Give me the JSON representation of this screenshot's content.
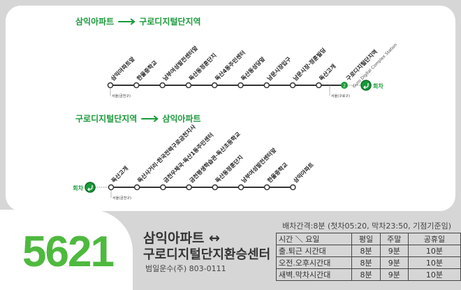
{
  "route_number": "5621",
  "colors": {
    "accent": "#1a9a3a",
    "number": "#4fb93f"
  },
  "outbound": {
    "from": "삼익아파트",
    "to": "구로디지털단지역",
    "stops": [
      "삼익아파트앞",
      "한울중학교",
      "남부여성발전센터앞",
      "독산동정훈단지",
      "독산4동주민센터",
      "독산동성당앞",
      "남문시장입구",
      "남문시장·정훈빌딩",
      "독산고개"
    ],
    "transfer_stop": "구로디지털단지역",
    "transfer_stop_en": "Guro Digital Complex Station",
    "transfer_badge": "2",
    "turnaround": "회차",
    "district_start": "서울(금천구)",
    "district_end": "서울(구로구)"
  },
  "inbound": {
    "from": "구로디지털단지역",
    "to": "삼익아파트",
    "stops": [
      "독산고개",
      "독산사거리·한국전력구로금천지사",
      "금천우체국·독산1동주민센터",
      "금천평생학습관·독산초등학교",
      "독산동정훈단지",
      "남부여성발전센터앞",
      "한울중학교",
      "삼익아파트"
    ],
    "turnaround": "회차",
    "district_start": "서울(금천구)"
  },
  "info": {
    "title_line1": "삼익아파트 ↔",
    "title_line2": "구로디지털단지환승센터",
    "operator": "범일운수(주) 803-0111",
    "interval_note": "배차간격:8분 (첫차05:20, 막차23:50, 기점기준임)",
    "header": [
      "시간 ＼ 요일",
      "평일",
      "주말",
      "공휴일"
    ],
    "rows": [
      [
        "출.퇴근  시간대",
        "8분",
        "9분",
        "10분"
      ],
      [
        "오전.오후시간대",
        "8분",
        "9분",
        "10분"
      ],
      [
        "새벽.막차시간대",
        "8분",
        "9분",
        "10분"
      ]
    ]
  }
}
